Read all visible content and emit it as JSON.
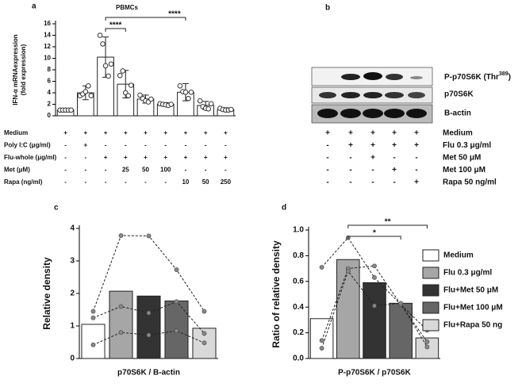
{
  "chart_data": [
    {
      "type": "bar",
      "panel_label": "a",
      "title": "PBMCs",
      "ylabel": [
        "IFN-α mRNAexpression",
        "(fold expression)"
      ],
      "values": [
        1,
        4,
        10.2,
        5.5,
        2.9,
        2,
        4.1,
        1.8,
        1.1
      ],
      "errors": [
        0.1,
        1.2,
        3.5,
        2.4,
        0.7,
        0.3,
        1.5,
        0.7,
        0.3
      ],
      "points": [
        [
          1,
          1,
          1,
          1,
          1
        ],
        [
          3.5,
          3.8,
          4.2,
          5.2,
          3.5
        ],
        [
          14,
          12.5,
          8.7,
          6.9,
          9
        ],
        [
          7,
          7.8,
          4,
          3.5,
          5.3
        ],
        [
          3.6,
          3,
          2.6,
          2.4,
          2.9
        ],
        [
          2.1,
          2,
          1.9,
          1.8,
          2
        ],
        [
          5.2,
          4.2,
          4.1,
          3,
          4.1
        ],
        [
          2.6,
          1.6,
          1.3,
          1.2,
          2.1
        ],
        [
          1.3,
          1.1,
          1,
          1,
          1.1
        ]
      ],
      "color": "#ffffff",
      "ylim": [
        0,
        16
      ],
      "yticks": [
        0,
        2,
        4,
        6,
        8,
        10,
        12,
        14,
        16
      ],
      "significance": [
        {
          "from": 2,
          "to": 3,
          "label": "****"
        },
        {
          "from": 2,
          "to": 6,
          "label": "****"
        }
      ],
      "conditions": [
        {
          "label": "Medium",
          "marks": [
            "+",
            "+",
            "+",
            "+",
            "+",
            "+",
            "+",
            "+",
            "+"
          ]
        },
        {
          "label": "Poly I:C (μg/ml)",
          "marks": [
            "-",
            "+",
            "-",
            "-",
            "-",
            "-",
            "-",
            "-",
            "-"
          ]
        },
        {
          "label": "Flu-whole (μg/ml)",
          "marks": [
            "-",
            "-",
            "+",
            "+",
            "+",
            "+",
            "+",
            "+",
            "+"
          ]
        },
        {
          "label": "Met (μM)",
          "marks": [
            "-",
            "-",
            "-",
            "25",
            "50",
            "100",
            "-",
            "-",
            "-"
          ]
        },
        {
          "label": "Rapa (ng/ml)",
          "marks": [
            "-",
            "-",
            "-",
            "-",
            "-",
            "-",
            "10",
            "50",
            "250"
          ]
        }
      ]
    },
    {
      "type": "bar",
      "panel_label": "c",
      "ylabel": "Relative density",
      "xlabel": "p70S6K / B-actin",
      "values": [
        1.05,
        2.07,
        1.92,
        1.77,
        0.93
      ],
      "colors": [
        "#ffffff",
        "#a6a6a6",
        "#333333",
        "#666666",
        "#d9d9d9"
      ],
      "lines": [
        [
          1.45,
          3.78,
          3.77,
          2.73,
          1.45
        ],
        [
          1.25,
          1.6,
          1.4,
          1.75,
          0.77
        ],
        [
          0.42,
          0.8,
          0.72,
          0.85,
          0.48
        ]
      ],
      "ylim": [
        0,
        4
      ],
      "yticks": [
        0,
        1,
        2,
        3,
        4
      ]
    },
    {
      "type": "bar",
      "panel_label": "d",
      "ylabel": "Ratio of relative density",
      "xlabel": "P-p70S6K / p70S6K",
      "categories": [
        "Medium",
        "Flu 0.3 μg/ml",
        "Flu+Met 50 μM",
        "Flu+Met 100 μM",
        "Flu+Rapa 50 ng"
      ],
      "values": [
        0.31,
        0.77,
        0.59,
        0.43,
        0.16
      ],
      "colors": [
        "#ffffff",
        "#a6a6a6",
        "#333333",
        "#666666",
        "#d9d9d9"
      ],
      "lines": [
        [
          0.71,
          0.94,
          0.63,
          0.42,
          0.13
        ],
        [
          0.14,
          0.7,
          0.72,
          0.42,
          0.22
        ],
        [
          0.08,
          0.68,
          0.41,
          0.43,
          0.09
        ]
      ],
      "ylim": [
        0,
        1
      ],
      "yticks": [
        {
          "value": 0,
          "label": "0.0"
        },
        {
          "value": 0.2,
          "label": "0.2"
        },
        {
          "value": 0.4,
          "label": "0.4"
        },
        {
          "value": 0.6,
          "label": "0.6"
        },
        {
          "value": 0.8,
          "label": "0.8"
        },
        {
          "value": 1,
          "label": "1.0"
        }
      ],
      "significance": [
        {
          "from": 1,
          "to": 3,
          "label": "*"
        },
        {
          "from": 1,
          "to": 4,
          "label": "**"
        }
      ]
    }
  ],
  "blot": {
    "panel_label": "b",
    "band_labels": [
      "P-p70S6K (Thr",
      "p70S6K",
      "B-actin"
    ],
    "band_label_sup": "389",
    "band_label_close": ")",
    "conditions": [
      {
        "label": "Medium",
        "marks": [
          "+",
          "+",
          "+",
          "+",
          "+"
        ]
      },
      {
        "label": "Flu 0.3 μg/ml",
        "marks": [
          "-",
          "+",
          "+",
          "+",
          "+"
        ]
      },
      {
        "label": "Met 50 μM",
        "marks": [
          "-",
          "-",
          "+",
          "-",
          "-"
        ]
      },
      {
        "label": "Met 100 μM",
        "marks": [
          "-",
          "-",
          "-",
          "+",
          "-"
        ]
      },
      {
        "label": "Rapa 50 ng/ml",
        "marks": [
          "-",
          "-",
          "-",
          "-",
          "+"
        ]
      }
    ]
  }
}
